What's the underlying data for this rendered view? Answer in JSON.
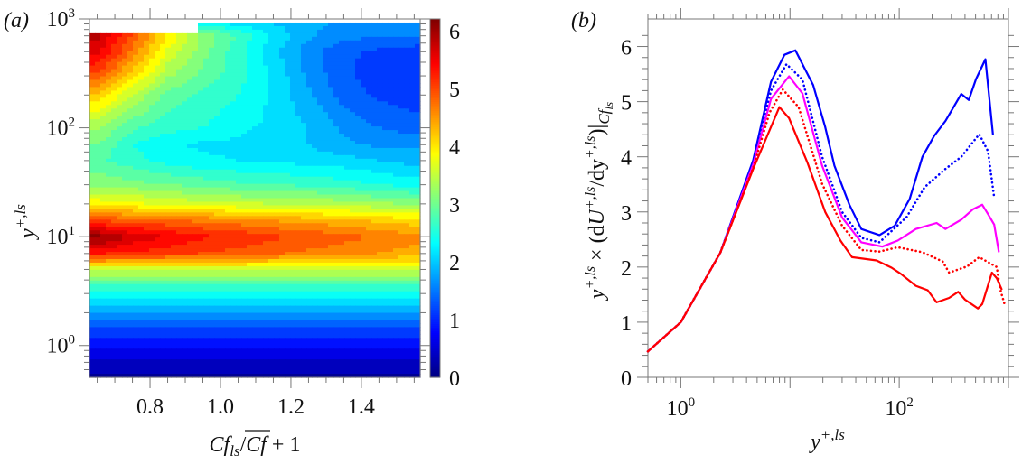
{
  "chart_data": [
    {
      "panel_label": "(a)",
      "type": "heatmap",
      "style": "filled-contour",
      "colormap": "jet",
      "xlabel": {
        "main": "Cf",
        "sub": "ls",
        "slash": "/",
        "over": "Cf",
        "tail": " + 1"
      },
      "ylabel": {
        "main": "y",
        "sup": "+,ls"
      },
      "xlim": [
        0.628,
        1.567
      ],
      "ylim": [
        0.51,
        1000
      ],
      "yscale": "log",
      "xticks": [
        "0.8",
        "1.0",
        "1.2",
        "1.4"
      ],
      "xtick_values": [
        0.8,
        1.0,
        1.2,
        1.4
      ],
      "yticks": [
        {
          "base": "10",
          "exp": "0",
          "value": 1
        },
        {
          "base": "10",
          "exp": "1",
          "value": 10
        },
        {
          "base": "10",
          "exp": "2",
          "value": 100
        },
        {
          "base": "10",
          "exp": "3",
          "value": 1000
        }
      ],
      "colorbar": {
        "range": [
          0,
          6.2
        ],
        "ticks": [
          "0",
          "1",
          "2",
          "3",
          "4",
          "5",
          "6"
        ],
        "tick_values": [
          0,
          1,
          2,
          3,
          4,
          5,
          6
        ]
      },
      "x": [
        0.65,
        0.75,
        0.85,
        0.95,
        1.05,
        1.15,
        1.25,
        1.35,
        1.45,
        1.55
      ],
      "y": [
        0.5,
        0.7,
        1,
        1.5,
        2,
        3,
        4,
        5,
        7,
        10,
        14,
        20,
        30,
        50,
        70,
        100,
        200,
        300,
        500,
        700,
        900
      ],
      "z": [
        [
          0.2,
          0.2,
          0.2,
          0.2,
          0.2,
          0.2,
          0.2,
          0.2,
          0.2,
          0.2
        ],
        [
          0.45,
          0.45,
          0.45,
          0.45,
          0.45,
          0.45,
          0.45,
          0.45,
          0.45,
          0.45
        ],
        [
          0.8,
          0.8,
          0.8,
          0.8,
          0.8,
          0.8,
          0.8,
          0.8,
          0.8,
          0.8
        ],
        [
          1.3,
          1.3,
          1.3,
          1.3,
          1.3,
          1.3,
          1.3,
          1.3,
          1.3,
          1.3
        ],
        [
          1.75,
          1.75,
          1.75,
          1.75,
          1.75,
          1.75,
          1.75,
          1.75,
          1.75,
          1.75
        ],
        [
          2.4,
          2.4,
          2.4,
          2.4,
          2.4,
          2.4,
          2.4,
          2.4,
          2.4,
          2.4
        ],
        [
          3.0,
          3.0,
          3.0,
          3.0,
          3.0,
          3.0,
          3.0,
          3.0,
          3.0,
          3.0
        ],
        [
          3.6,
          3.6,
          3.6,
          3.6,
          3.6,
          3.6,
          3.6,
          3.6,
          3.6,
          3.6
        ],
        [
          5.3,
          5.2,
          5.1,
          5.0,
          4.9,
          4.8,
          4.7,
          4.6,
          4.5,
          4.4
        ],
        [
          6.1,
          5.7,
          5.5,
          5.3,
          5.2,
          5.05,
          4.95,
          4.85,
          4.7,
          4.6
        ],
        [
          5.0,
          4.9,
          4.8,
          4.7,
          4.6,
          4.5,
          4.4,
          4.3,
          4.2,
          4.1
        ],
        [
          3.9,
          3.8,
          3.7,
          3.6,
          3.55,
          3.5,
          3.45,
          3.4,
          3.3,
          3.2
        ],
        [
          3.2,
          3.1,
          3.0,
          2.9,
          2.8,
          2.75,
          2.7,
          2.6,
          2.5,
          2.4
        ],
        [
          2.8,
          2.6,
          2.4,
          2.3,
          2.25,
          2.2,
          2.15,
          2.1,
          2.0,
          1.9
        ],
        [
          3.0,
          2.5,
          2.3,
          2.2,
          2.2,
          2.1,
          2.0,
          1.8,
          1.7,
          1.7
        ],
        [
          3.3,
          2.8,
          2.6,
          2.5,
          2.3,
          2.2,
          2.0,
          1.7,
          1.5,
          1.4
        ],
        [
          4.2,
          3.5,
          2.9,
          2.7,
          2.5,
          2.2,
          1.8,
          1.4,
          1.2,
          1.1
        ],
        [
          4.9,
          4.1,
          3.3,
          2.9,
          2.6,
          2.2,
          1.7,
          1.3,
          1.1,
          1.0
        ],
        [
          5.6,
          4.7,
          3.7,
          3.1,
          2.6,
          2.1,
          1.6,
          1.3,
          1.2,
          1.1
        ],
        [
          5.8,
          4.9,
          4.0,
          3.2,
          2.7,
          2.2,
          1.8,
          1.6,
          1.5,
          1.5
        ],
        [
          null,
          null,
          2.8,
          2.4,
          2.2,
          2.0,
          1.8,
          1.7,
          1.6,
          1.5
        ]
      ]
    },
    {
      "panel_label": "(b)",
      "type": "line",
      "xlabel": {
        "main": "y",
        "sup": "+,ls"
      },
      "ylabel": {
        "p1": "y",
        "p1sup": "+,ls",
        "p2": " × (d",
        "p3": "U",
        "p3sup": "+,ls",
        "p4": "/dy",
        "p4sup": "+,ls",
        "p5": ")|",
        "p6": "Cf",
        "p6sub": "ls"
      },
      "xscale": "log",
      "xlim": [
        0.5,
        1000
      ],
      "ylim": [
        0,
        6.5
      ],
      "xticks": [
        {
          "base": "10",
          "exp": "0",
          "value": 1
        },
        {
          "base": "10",
          "exp": "2",
          "value": 100
        }
      ],
      "yticks": [
        "0",
        "1",
        "2",
        "3",
        "4",
        "5",
        "6"
      ],
      "ytick_values": [
        0,
        1,
        2,
        3,
        4,
        5,
        6
      ],
      "series": [
        {
          "color": "#0000ff",
          "dash": "solid",
          "x": [
            0.5,
            1,
            2.3,
            4.6,
            6.7,
            8.9,
            11.2,
            16.3,
            21,
            25.5,
            35,
            45,
            66,
            91,
            125,
            163,
            209,
            265,
            370,
            433,
            505,
            615,
            720
          ],
          "y": [
            0.47,
            1.0,
            2.26,
            3.94,
            5.36,
            5.85,
            5.93,
            5.3,
            4.54,
            3.84,
            3.13,
            2.69,
            2.58,
            2.75,
            3.24,
            4.0,
            4.38,
            4.65,
            5.14,
            5.03,
            5.41,
            5.77,
            4.41
          ]
        },
        {
          "color": "#0000ff",
          "dash": "dotted",
          "x": [
            0.5,
            1,
            2.3,
            4.6,
            6.7,
            9.3,
            13,
            19.7,
            30,
            45,
            66,
            117,
            171,
            265,
            370,
            540,
            650,
            740
          ],
          "y": [
            0.47,
            1.0,
            2.26,
            3.9,
            5.2,
            5.68,
            5.4,
            4.0,
            3.0,
            2.53,
            2.45,
            2.91,
            3.45,
            3.78,
            4.0,
            4.41,
            4.1,
            3.26
          ]
        },
        {
          "color": "#ff00ff",
          "dash": "solid",
          "x": [
            0.5,
            1,
            2.3,
            4.6,
            6.7,
            9.8,
            13,
            19.7,
            30,
            45,
            70,
            97,
            142,
            220,
            265,
            370,
            475,
            575,
            650,
            740,
            815
          ],
          "y": [
            0.47,
            1.0,
            2.26,
            3.86,
            5.05,
            5.46,
            5.15,
            3.84,
            2.9,
            2.45,
            2.37,
            2.48,
            2.69,
            2.8,
            2.69,
            2.86,
            3.05,
            3.13,
            2.96,
            2.77,
            2.28
          ]
        },
        {
          "color": "#ff0000",
          "dash": "dotted",
          "x": [
            0.5,
            1,
            2.3,
            4.6,
            6.5,
            8.6,
            12,
            19.7,
            30,
            45,
            66,
            97,
            163,
            250,
            286,
            418,
            540,
            780,
            840,
            935
          ],
          "y": [
            0.47,
            1.0,
            2.26,
            3.8,
            4.8,
            5.22,
            4.9,
            3.51,
            2.75,
            2.31,
            2.28,
            2.36,
            2.27,
            2.1,
            1.9,
            2.01,
            2.18,
            2.0,
            1.6,
            1.28
          ]
        },
        {
          "color": "#ff0000",
          "dash": "solid",
          "x": [
            0.5,
            1,
            2.3,
            4.6,
            8,
            9.8,
            14.4,
            21,
            29,
            37,
            62,
            85,
            103,
            142,
            182,
            220,
            286,
            347,
            400,
            525,
            575,
            705,
            780,
            865
          ],
          "y": [
            0.47,
            1.0,
            2.26,
            3.78,
            4.9,
            4.7,
            3.9,
            3.0,
            2.48,
            2.18,
            2.12,
            1.99,
            1.88,
            1.66,
            1.58,
            1.36,
            1.44,
            1.55,
            1.41,
            1.25,
            1.33,
            1.9,
            1.8,
            1.6
          ]
        }
      ]
    }
  ]
}
